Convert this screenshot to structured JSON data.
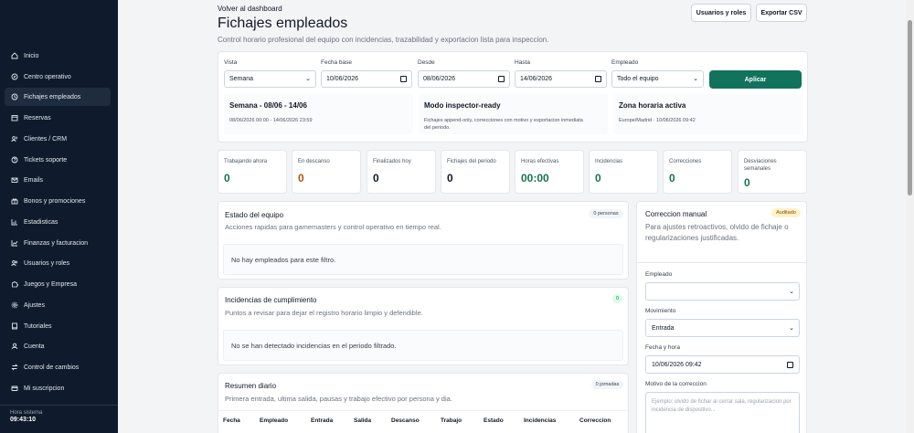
{
  "sidebar": {
    "items": [
      {
        "label": "Inicio",
        "icon": "home-icon"
      },
      {
        "label": "Centro operativo",
        "icon": "compass-icon"
      },
      {
        "label": "Fichajes empleados",
        "icon": "clock-icon",
        "active": true
      },
      {
        "label": "Reservas",
        "icon": "calendar-icon"
      },
      {
        "label": "Clientes / CRM",
        "icon": "users-icon"
      },
      {
        "label": "Tickets soporte",
        "icon": "help-icon"
      },
      {
        "label": "Emails",
        "icon": "mail-icon"
      },
      {
        "label": "Bonos y promociones",
        "icon": "gift-icon"
      },
      {
        "label": "Estadisticas",
        "icon": "bar-chart-icon"
      },
      {
        "label": "Finanzas y facturacion",
        "icon": "line-chart-icon"
      },
      {
        "label": "Usuarios y roles",
        "icon": "user-group-icon"
      },
      {
        "label": "Juegos y Empresa",
        "icon": "puzzle-icon"
      },
      {
        "label": "Ajustes",
        "icon": "gear-icon"
      },
      {
        "label": "Tutoriales",
        "icon": "book-icon"
      },
      {
        "label": "Cuenta",
        "icon": "user-icon"
      },
      {
        "label": "Control de cambios",
        "icon": "arrows-icon"
      },
      {
        "label": "Mi suscripcion",
        "icon": "card-icon"
      }
    ],
    "footer_label": "Hora sistema",
    "footer_time": "09:43:10"
  },
  "header": {
    "back_label": "Volver al dashboard",
    "title": "Fichajes empleados",
    "subtitle": "Control horario profesional del equipo con incidencias, trazabilidad y exportacion lista para inspeccion.",
    "users_roles_button": "Usuarios y roles",
    "export_button": "Exportar CSV"
  },
  "filters": {
    "vista_label": "Vista",
    "vista_value": "Semana",
    "fecha_base_label": "Fecha base",
    "fecha_base_value": "10/06/2026",
    "desde_label": "Desde",
    "desde_value": "08/06/2026",
    "hasta_label": "Hasta",
    "hasta_value": "14/06/2026",
    "empleado_label": "Empleado",
    "empleado_value": "Todo el equipo",
    "apply_button": "Aplicar"
  },
  "info_cards": [
    {
      "title": "Semana - 08/06 - 14/06",
      "text": "08/06/2026 00:00 - 14/06/2026 23:59"
    },
    {
      "title": "Modo inspector-ready",
      "text": "Fichajes append-only, correcciones con motivo y exportacion inmediata del periodo."
    },
    {
      "title": "Zona horaria activa",
      "text": "Europe/Madrid · 10/06/2026 09:42"
    }
  ],
  "stats": [
    {
      "label": "Trabajando ahora",
      "value": "0",
      "color": "#16734e"
    },
    {
      "label": "En descanso",
      "value": "0",
      "color": "#b45309"
    },
    {
      "label": "Finalizados hoy",
      "value": "0",
      "color": "#111827"
    },
    {
      "label": "Fichajes del periodo",
      "value": "0",
      "color": "#111827"
    },
    {
      "label": "Horas efectivas",
      "value": "00:00",
      "color": "#16734e"
    },
    {
      "label": "Incidencias",
      "value": "0",
      "color": "#16734e"
    },
    {
      "label": "Correcciones",
      "value": "0",
      "color": "#16734e"
    },
    {
      "label": "Desviaciones semanales",
      "value": "0",
      "color": "#16734e"
    }
  ],
  "team_status": {
    "title": "Estado del equipo",
    "badge": "0 personas",
    "subtitle": "Acciones rapidas para gamemasters y control operativo en tiempo real.",
    "empty": "No hay empleados para este filtro."
  },
  "compliance": {
    "title": "Incidencias de cumplimiento",
    "badge": "0",
    "subtitle": "Puntos a revisar para dejar el registro horario limpio y defendible.",
    "empty": "No se han detectado incidencias en el periodo filtrado."
  },
  "daily_summary": {
    "title": "Resumen diario",
    "badge": "0 jornadas",
    "subtitle": "Primera entrada, ultima salida, pausas y trabajo efectivo por persona y dia.",
    "columns": [
      "Fecha",
      "Empleado",
      "Entrada",
      "Salida",
      "Descanso",
      "Trabajo",
      "Estado",
      "Incidencias",
      "Correccion"
    ]
  },
  "manual_correction": {
    "title": "Correccion manual",
    "badge": "Auditado",
    "subtitle": "Para ajustes retroactivos, olvido de fichaje o regularizaciones justificadas.",
    "employee_label": "Empleado",
    "employee_value": "",
    "movement_label": "Movimiento",
    "movement_value": "Entrada",
    "datetime_label": "Fecha y hora",
    "datetime_value": "10/06/2026 09:42",
    "reason_label": "Motivo de la correccion",
    "reason_placeholder": "Ejemplo: olvido de fichar al cerrar sala, regularizacion por incidencia de dispositivo..."
  }
}
